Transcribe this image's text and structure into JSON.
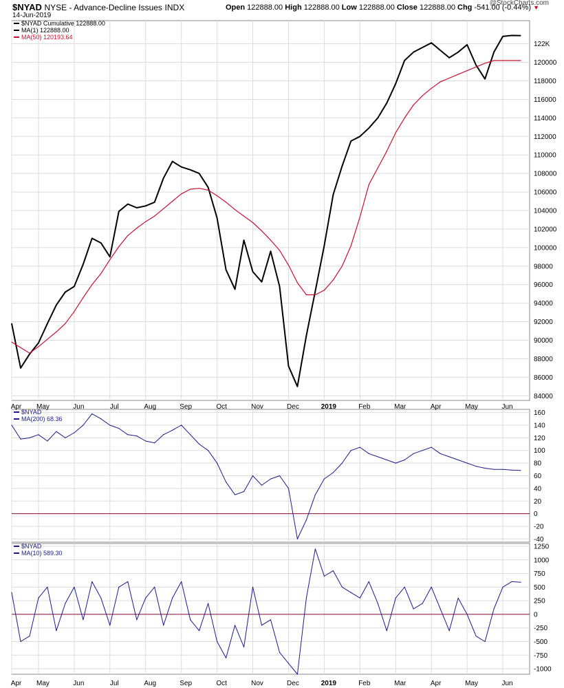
{
  "header": {
    "symbol": "$NYAD",
    "description": "NYSE - Advance-Decline Issues",
    "exchange": "INDX",
    "date": "14-Jun-2019",
    "open_label": "Open",
    "open": "122888.00",
    "high_label": "High",
    "high": "122888.00",
    "low_label": "Low",
    "low": "122888.00",
    "close_label": "Close",
    "close": "122888.00",
    "chg_label": "Chg",
    "chg": "-541.00 (-0.44%)",
    "credit": "@StockCharts.com"
  },
  "colors": {
    "price": "#000000",
    "ma50": "#c8102e",
    "blue": "#1a1a8c",
    "zero": "#8b0a3a",
    "grid": "#dcdcdc"
  },
  "chart_data": [
    {
      "type": "line",
      "panel": "main",
      "legend": [
        "$NYAD Cumulative 122888.00",
        "MA(1) 122888.00",
        "MA(50) 120193.64"
      ],
      "ylim": [
        83500,
        124500
      ],
      "y_ticks": [
        84000,
        86000,
        88000,
        90000,
        92000,
        94000,
        96000,
        98000,
        100000,
        102000,
        104000,
        106000,
        108000,
        110000,
        112000,
        114000,
        116000,
        118000,
        120000,
        122000
      ],
      "y_tick_labels": [
        "84000",
        "86000",
        "88000",
        "90000",
        "92000",
        "94000",
        "96000",
        "98000",
        "100000",
        "102000",
        "104000",
        "106000",
        "108000",
        "110000",
        "112000",
        "114000",
        "116000",
        "118000",
        "120000",
        "122K"
      ],
      "x_labels": [
        "Apr",
        "May",
        "Jun",
        "Jul",
        "Aug",
        "Sep",
        "Oct",
        "Nov",
        "Dec",
        "2019",
        "Feb",
        "Mar",
        "Apr",
        "May",
        "Jun"
      ],
      "x_label_pos": [
        0.5,
        3.5,
        7.5,
        11.5,
        15.5,
        19.5,
        23.5,
        27.5,
        31.5,
        35.5,
        39.5,
        43.5,
        47.5,
        51.5,
        55.5
      ],
      "x_range": [
        0,
        58
      ],
      "series": [
        {
          "name": "$NYAD Cumulative",
          "x": [
            0,
            1,
            2,
            3,
            4,
            5,
            6,
            7,
            8,
            9,
            10,
            11,
            12,
            13,
            14,
            15,
            16,
            17,
            18,
            19,
            20,
            21,
            22,
            23,
            24,
            25,
            26,
            27,
            28,
            29,
            30,
            31,
            32,
            33,
            34,
            35,
            36,
            37,
            38,
            39,
            40,
            41,
            42,
            43,
            44,
            45,
            46,
            47,
            48,
            49,
            50,
            51,
            52,
            53,
            54,
            55,
            56,
            57
          ],
          "values": [
            91800,
            87000,
            88500,
            89700,
            91800,
            93800,
            95200,
            95800,
            98200,
            101000,
            100500,
            99000,
            103900,
            104700,
            104300,
            104500,
            104900,
            107500,
            109300,
            108700,
            108400,
            108000,
            106500,
            103200,
            97600,
            95500,
            100800,
            97400,
            96300,
            99600,
            95800,
            87200,
            85000,
            90500,
            95300,
            100200,
            105700,
            108800,
            111500,
            112000,
            112900,
            114000,
            115600,
            117700,
            120200,
            121100,
            121600,
            122100,
            121300,
            120500,
            121100,
            121900,
            119700,
            118200,
            121100,
            122800,
            122900,
            122888
          ]
        },
        {
          "name": "MA(50)",
          "x": [
            0,
            1,
            2,
            3,
            4,
            5,
            6,
            7,
            8,
            9,
            10,
            11,
            12,
            13,
            14,
            15,
            16,
            17,
            18,
            19,
            20,
            21,
            22,
            23,
            24,
            25,
            26,
            27,
            28,
            29,
            30,
            31,
            32,
            33,
            34,
            35,
            36,
            37,
            38,
            39,
            40,
            41,
            42,
            43,
            44,
            45,
            46,
            47,
            48,
            49,
            50,
            51,
            52,
            53,
            54,
            55,
            56,
            57
          ],
          "values": [
            89800,
            89200,
            88600,
            89300,
            90100,
            90900,
            91800,
            93100,
            94600,
            96000,
            97200,
            98700,
            100100,
            101300,
            102100,
            102800,
            103400,
            104200,
            105000,
            105800,
            106300,
            106400,
            106200,
            105600,
            104900,
            104100,
            103400,
            102700,
            101800,
            100800,
            99700,
            98100,
            96200,
            94900,
            94900,
            95400,
            96500,
            98000,
            100200,
            103300,
            106800,
            108600,
            110400,
            112400,
            114000,
            115400,
            116400,
            117200,
            117900,
            118300,
            118700,
            119100,
            119500,
            119900,
            120193.64,
            120193.64,
            120193.64,
            120193.64
          ]
        }
      ]
    },
    {
      "type": "line",
      "panel": "ma200",
      "legend": [
        "$NYAD",
        "MA(200) 68.36"
      ],
      "ylim": [
        -45,
        165
      ],
      "y_ticks": [
        -40,
        -20,
        0,
        20,
        40,
        60,
        80,
        100,
        120,
        140,
        160
      ],
      "y_tick_labels": [
        "-40",
        "-20",
        "0",
        "20",
        "40",
        "60",
        "80",
        "100",
        "120",
        "140",
        "160"
      ],
      "zero_line": 0,
      "series": [
        {
          "name": "MA(200)",
          "x": [
            0,
            1,
            2,
            3,
            4,
            5,
            6,
            7,
            8,
            9,
            10,
            11,
            12,
            13,
            14,
            15,
            16,
            17,
            18,
            19,
            20,
            21,
            22,
            23,
            24,
            25,
            26,
            27,
            28,
            29,
            30,
            31,
            32,
            33,
            34,
            35,
            36,
            37,
            38,
            39,
            40,
            41,
            42,
            43,
            44,
            45,
            46,
            47,
            48,
            49,
            50,
            51,
            52,
            53,
            54,
            55,
            56,
            57
          ],
          "values": [
            140,
            118,
            120,
            125,
            115,
            130,
            120,
            128,
            140,
            158,
            150,
            140,
            135,
            125,
            123,
            115,
            112,
            125,
            132,
            140,
            125,
            110,
            100,
            80,
            50,
            30,
            35,
            60,
            45,
            55,
            60,
            40,
            -40,
            -10,
            30,
            55,
            65,
            80,
            100,
            105,
            95,
            90,
            85,
            80,
            85,
            95,
            100,
            105,
            95,
            90,
            85,
            80,
            75,
            72,
            70,
            70,
            69,
            68.36
          ]
        }
      ]
    },
    {
      "type": "line",
      "panel": "ma10",
      "legend": [
        "$NYAD",
        "MA(10) 589.30"
      ],
      "ylim": [
        -1100,
        1300
      ],
      "y_ticks": [
        -1000,
        -750,
        -500,
        -250,
        0,
        250,
        500,
        750,
        1000,
        1250
      ],
      "y_tick_labels": [
        "-1000",
        "-750",
        "-500",
        "-250",
        "0",
        "250",
        "500",
        "750",
        "1000",
        "1250"
      ],
      "zero_line": 0,
      "series": [
        {
          "name": "MA(10)",
          "x": [
            0,
            1,
            2,
            3,
            4,
            5,
            6,
            7,
            8,
            9,
            10,
            11,
            12,
            13,
            14,
            15,
            16,
            17,
            18,
            19,
            20,
            21,
            22,
            23,
            24,
            25,
            26,
            27,
            28,
            29,
            30,
            31,
            32,
            33,
            34,
            35,
            36,
            37,
            38,
            39,
            40,
            41,
            42,
            43,
            44,
            45,
            46,
            47,
            48,
            49,
            50,
            51,
            52,
            53,
            54,
            55,
            56,
            57
          ],
          "values": [
            400,
            -500,
            -400,
            300,
            500,
            -300,
            200,
            500,
            -100,
            600,
            300,
            -200,
            500,
            600,
            -100,
            300,
            500,
            -200,
            300,
            600,
            -100,
            -300,
            200,
            -500,
            -800,
            -200,
            -600,
            500,
            -200,
            -100,
            -700,
            -900,
            -1100,
            300,
            1200,
            700,
            800,
            500,
            400,
            300,
            600,
            200,
            -300,
            300,
            500,
            100,
            200,
            500,
            100,
            -300,
            300,
            0,
            -400,
            -500,
            100,
            500,
            600,
            589.3
          ]
        }
      ]
    }
  ]
}
